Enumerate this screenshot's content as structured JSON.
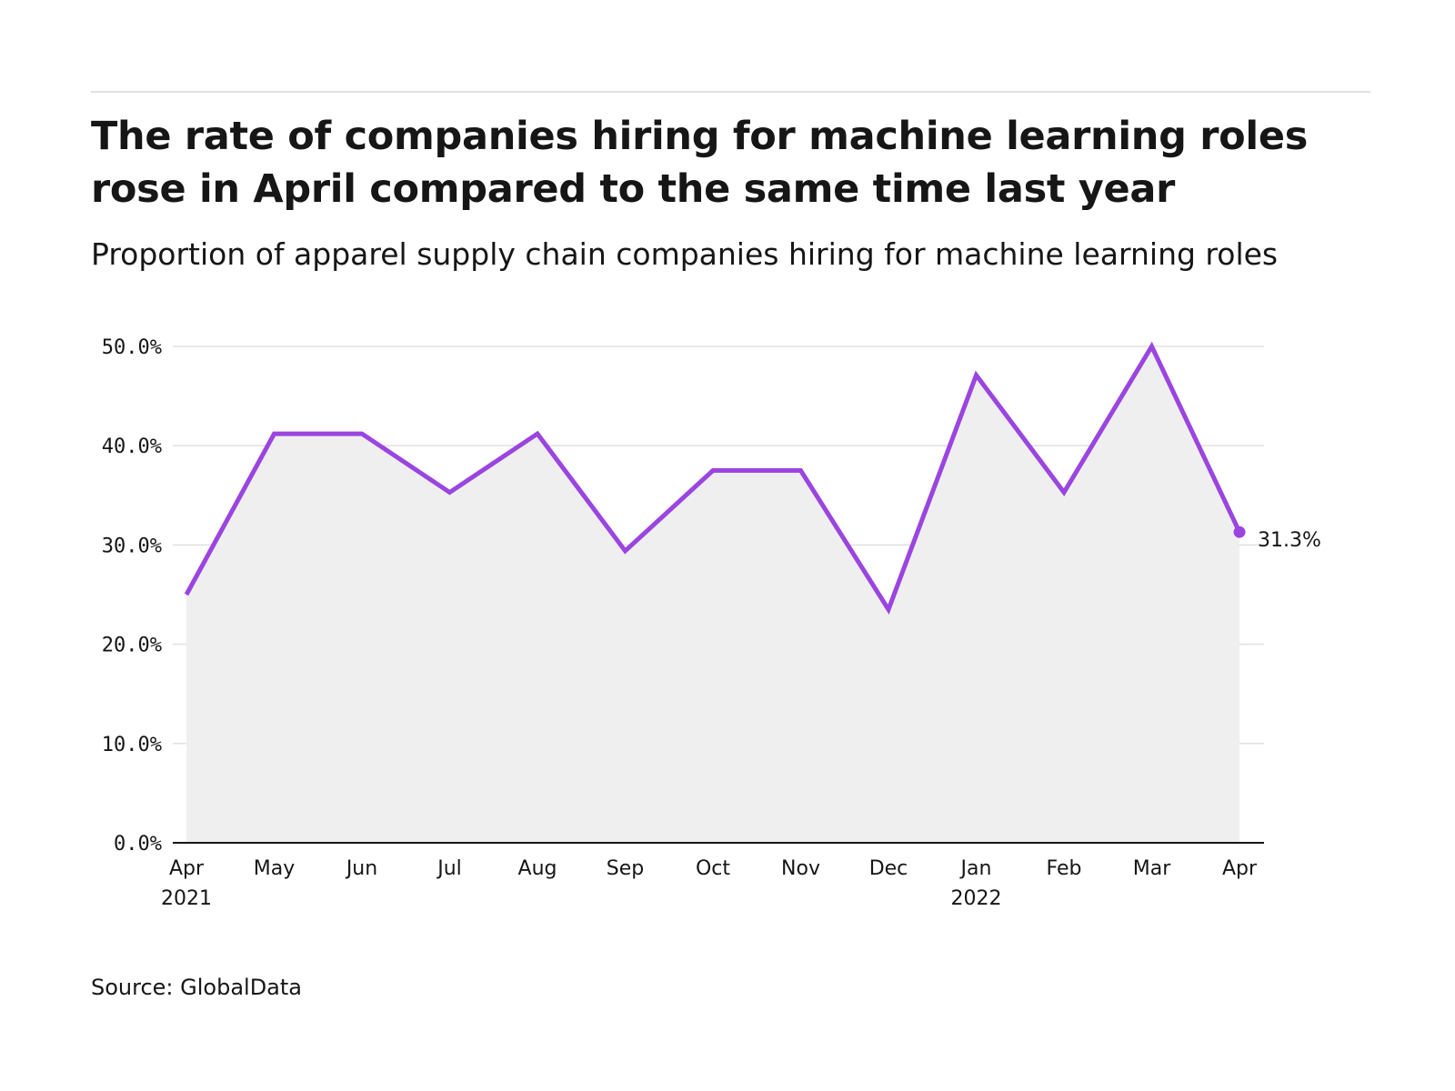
{
  "header": {
    "title": "The rate of companies hiring for machine learning roles rose in April compared to the same time last year",
    "subtitle": "Proportion of apparel supply chain companies hiring for machine learning roles"
  },
  "footer": {
    "source": "Source: GlobalData"
  },
  "colors": {
    "line": "#9b45e0",
    "area": "#efefef",
    "grid": "#e0e0e0",
    "axis": "#161616"
  },
  "chart_data": {
    "type": "area",
    "title": "The rate of companies hiring for machine learning roles rose in April compared to the same time last year",
    "subtitle": "Proportion of apparel supply chain companies hiring for machine learning roles",
    "x": [
      "Apr 2021",
      "May 2021",
      "Jun 2021",
      "Jul 2021",
      "Aug 2021",
      "Sep 2021",
      "Oct 2021",
      "Nov 2021",
      "Dec 2021",
      "Jan 2022",
      "Feb 2022",
      "Mar 2022",
      "Apr 2022"
    ],
    "tick_labels": [
      {
        "month": "Apr",
        "year": "2021"
      },
      {
        "month": "May",
        "year": ""
      },
      {
        "month": "Jun",
        "year": ""
      },
      {
        "month": "Jul",
        "year": ""
      },
      {
        "month": "Aug",
        "year": ""
      },
      {
        "month": "Sep",
        "year": ""
      },
      {
        "month": "Oct",
        "year": ""
      },
      {
        "month": "Nov",
        "year": ""
      },
      {
        "month": "Dec",
        "year": ""
      },
      {
        "month": "Jan",
        "year": "2022"
      },
      {
        "month": "Feb",
        "year": ""
      },
      {
        "month": "Mar",
        "year": ""
      },
      {
        "month": "Apr",
        "year": ""
      }
    ],
    "series": [
      {
        "values": [
          25.0,
          41.2,
          41.2,
          35.3,
          41.2,
          29.4,
          37.5,
          37.5,
          23.5,
          47.1,
          35.3,
          50.0,
          31.3
        ]
      }
    ],
    "y_ticks": [
      "0.0%",
      "10.0%",
      "20.0%",
      "30.0%",
      "40.0%",
      "50.0%"
    ],
    "ylim": [
      0,
      50
    ],
    "unit": "%",
    "end_label": "31.3%",
    "grid": true,
    "legend": "none"
  }
}
